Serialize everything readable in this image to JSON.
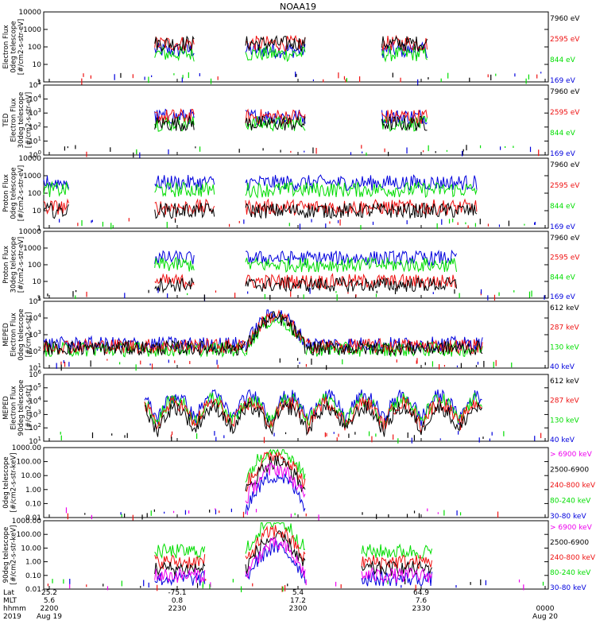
{
  "title": "NOAA19",
  "colors": {
    "black": "#000000",
    "red": "#ee1111",
    "green": "#00dd00",
    "blue": "#0000dd",
    "magenta": "#ee00ee"
  },
  "chart_data": [
    {
      "type": "line",
      "ylabel": "Electron Flux\n0deg telescope\n[#/cm2-s-str-eV]",
      "yscale": "log",
      "ylim": [
        1,
        10000
      ],
      "yticks": [
        "10000",
        "1000",
        "100",
        "10",
        "1"
      ],
      "series": [
        {
          "name": "7960 eV",
          "color": "#000000"
        },
        {
          "name": "2595 eV",
          "color": "#ee1111"
        },
        {
          "name": "844 eV",
          "color": "#00dd00"
        },
        {
          "name": "169 eV",
          "color": "#0000dd"
        }
      ]
    },
    {
      "type": "line",
      "ylabel": "TED\nElectron Flux\n30deg telescope\n[#/cm2-s-str-eV]",
      "yscale": "log",
      "ylim": [
        1,
        100000
      ],
      "yticks": [
        "10^5",
        "10^4",
        "10^3",
        "10^2",
        "10^1",
        "10^0"
      ],
      "series": [
        {
          "name": "7960 eV",
          "color": "#000000"
        },
        {
          "name": "2595 eV",
          "color": "#ee1111"
        },
        {
          "name": "844 eV",
          "color": "#00dd00"
        },
        {
          "name": "169 eV",
          "color": "#0000dd"
        }
      ]
    },
    {
      "type": "line",
      "ylabel": "Proton Flux\n0deg telescope\n[#/cm2-s-str-eV]",
      "yscale": "log",
      "ylim": [
        1,
        10000
      ],
      "yticks": [
        "10000",
        "1000",
        "100",
        "10",
        "1"
      ],
      "series": [
        {
          "name": "7960 eV",
          "color": "#000000"
        },
        {
          "name": "2595 eV",
          "color": "#ee1111"
        },
        {
          "name": "844 eV",
          "color": "#00dd00"
        },
        {
          "name": "169 eV",
          "color": "#0000dd"
        }
      ]
    },
    {
      "type": "line",
      "ylabel": "Proton Flux\n30deg telescope\n[#/cm2-s-str-eV]",
      "yscale": "log",
      "ylim": [
        1,
        10000
      ],
      "yticks": [
        "10000",
        "1000",
        "100",
        "10",
        "1"
      ],
      "series": [
        {
          "name": "7960 eV",
          "color": "#000000"
        },
        {
          "name": "2595 eV",
          "color": "#ee1111"
        },
        {
          "name": "844 eV",
          "color": "#00dd00"
        },
        {
          "name": "169 eV",
          "color": "#0000dd"
        }
      ]
    },
    {
      "type": "line",
      "ylabel": "MEPED\nElectron Flux\n0deg telescope\n[#/cm2-s-str]",
      "yscale": "log",
      "ylim": [
        10,
        100000
      ],
      "yticks": [
        "10^5",
        "10^4",
        "10^3",
        "10^2",
        "10^1"
      ],
      "series": [
        {
          "name": "612 keV",
          "color": "#000000"
        },
        {
          "name": "287 keV",
          "color": "#ee1111"
        },
        {
          "name": "130 keV",
          "color": "#00dd00"
        },
        {
          "name": "40 keV",
          "color": "#0000dd"
        }
      ]
    },
    {
      "type": "line",
      "ylabel": "MEPED\nElectron Flux\n90deg telescope\n[#/cm2-s-str]",
      "yscale": "log",
      "ylim": [
        10,
        1000000
      ],
      "yticks": [
        "10^6",
        "10^5",
        "10^4",
        "10^3",
        "10^2",
        "10^1"
      ],
      "series": [
        {
          "name": "612 keV",
          "color": "#000000"
        },
        {
          "name": "287 keV",
          "color": "#ee1111"
        },
        {
          "name": "130 keV",
          "color": "#00dd00"
        },
        {
          "name": "40 keV",
          "color": "#0000dd"
        }
      ]
    },
    {
      "type": "line",
      "ylabel": "0deg telescope\n[#/cm2-s-str-keV]",
      "yscale": "log",
      "ylim": [
        0.01,
        1000
      ],
      "yticks": [
        "1000.00",
        "100.00",
        "10.00",
        "1.00",
        "0.10",
        "0.01"
      ],
      "series": [
        {
          "name": "> 6900 keV",
          "color": "#ee00ee"
        },
        {
          "name": "2500-6900",
          "color": "#000000"
        },
        {
          "name": "240-800 keV",
          "color": "#ee1111"
        },
        {
          "name": "80-240 keV",
          "color": "#00dd00"
        },
        {
          "name": "30-80 keV",
          "color": "#0000dd"
        }
      ]
    },
    {
      "type": "line",
      "ylabel": "90deg telescope\n[#/cm2-s-str-keV]",
      "yscale": "log",
      "ylim": [
        0.01,
        1000
      ],
      "yticks": [
        "1000.00",
        "100.00",
        "10.00",
        "1.00",
        "0.10",
        "0.01"
      ],
      "series": [
        {
          "name": "> 6900 keV",
          "color": "#ee00ee"
        },
        {
          "name": "2500-6900",
          "color": "#000000"
        },
        {
          "name": "240-800 keV",
          "color": "#ee1111"
        },
        {
          "name": "80-240 keV",
          "color": "#00dd00"
        },
        {
          "name": "30-80 keV",
          "color": "#0000dd"
        }
      ]
    }
  ],
  "x_axis": {
    "row_labels": [
      "Lat",
      "MLT",
      "hhmm",
      "2019"
    ],
    "columns": [
      {
        "lat": "25.2",
        "mlt": "5.6",
        "hhmm": "2200",
        "date": "Aug 19"
      },
      {
        "lat": "-75.1",
        "mlt": "0.8",
        "hhmm": "2230",
        "date": ""
      },
      {
        "lat": "5.4",
        "mlt": "17.2",
        "hhmm": "2300",
        "date": ""
      },
      {
        "lat": "64.9",
        "mlt": "7.6",
        "hhmm": "2330",
        "date": ""
      },
      {
        "lat": "",
        "mlt": "",
        "hhmm": "0000",
        "date": "Aug 20"
      }
    ]
  }
}
